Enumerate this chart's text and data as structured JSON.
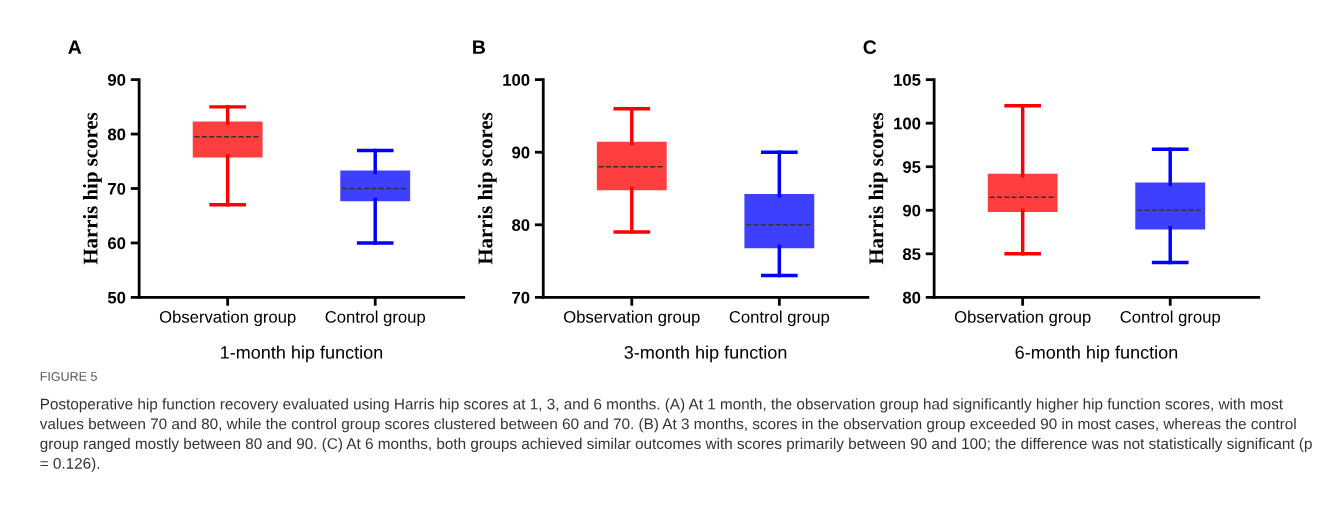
{
  "chart_data": [
    {
      "type": "box",
      "title": "A",
      "ylabel": "Harris hip scores",
      "xlabel": "1-month hip function",
      "categories": [
        "Observation group",
        "Control group"
      ],
      "colors": [
        "#ff0000",
        "#0000ff"
      ],
      "boxes": [
        {
          "low": 67,
          "q1": 76,
          "median": 79.5,
          "q3": 82,
          "high": 85
        },
        {
          "low": 60,
          "q1": 68,
          "median": 70,
          "q3": 73,
          "high": 77
        }
      ],
      "ylim": [
        50,
        90
      ],
      "yticks": [
        50,
        60,
        70,
        80,
        90
      ],
      "grid": false,
      "annotations": [
        "FIGURE 5",
        "Postoperative hip function recovery evaluated using Harris hip scores at 1, 3, and 6 months. (A) At 1 month, the observation group had significantly higher hip function scores, with most values between 70 and 80, while the control group scores clustered between 60 and 70. (B) At 3 months, scores in the observation group exceeded 90 in most cases, whereas the control group ranged mostly between 80 and 90. (C) At 6 months, both groups achieved similar outcomes with scores primarily between 90 and 100; the difference was not statistically significant (p = 0.126)."
      ]
    },
    {
      "type": "box",
      "title": "B",
      "ylabel": "Harris hip scores",
      "xlabel": "3-month hip function",
      "categories": [
        "Observation group",
        "Control group"
      ],
      "colors": [
        "#ff0000",
        "#0000ff"
      ],
      "boxes": [
        {
          "low": 79,
          "q1": 85,
          "median": 88,
          "q3": 91.2,
          "high": 96
        },
        {
          "low": 73,
          "q1": 77,
          "median": 80,
          "q3": 84,
          "high": 90
        }
      ],
      "ylim": [
        70,
        100
      ],
      "yticks": [
        70,
        80,
        90,
        100
      ],
      "grid": false
    },
    {
      "type": "box",
      "title": "C",
      "ylabel": "Harris hip scores",
      "xlabel": "6-month hip function",
      "categories": [
        "Observation group",
        "Control group"
      ],
      "colors": [
        "#ff0000",
        "#0000ff"
      ],
      "boxes": [
        {
          "low": 85,
          "q1": 90,
          "median": 91.5,
          "q3": 94,
          "high": 102
        },
        {
          "low": 84,
          "q1": 88,
          "median": 90,
          "q3": 93,
          "high": 97
        }
      ],
      "ylim": [
        80,
        105
      ],
      "yticks": [
        80,
        85,
        90,
        95,
        100,
        105
      ],
      "grid": false
    }
  ]
}
